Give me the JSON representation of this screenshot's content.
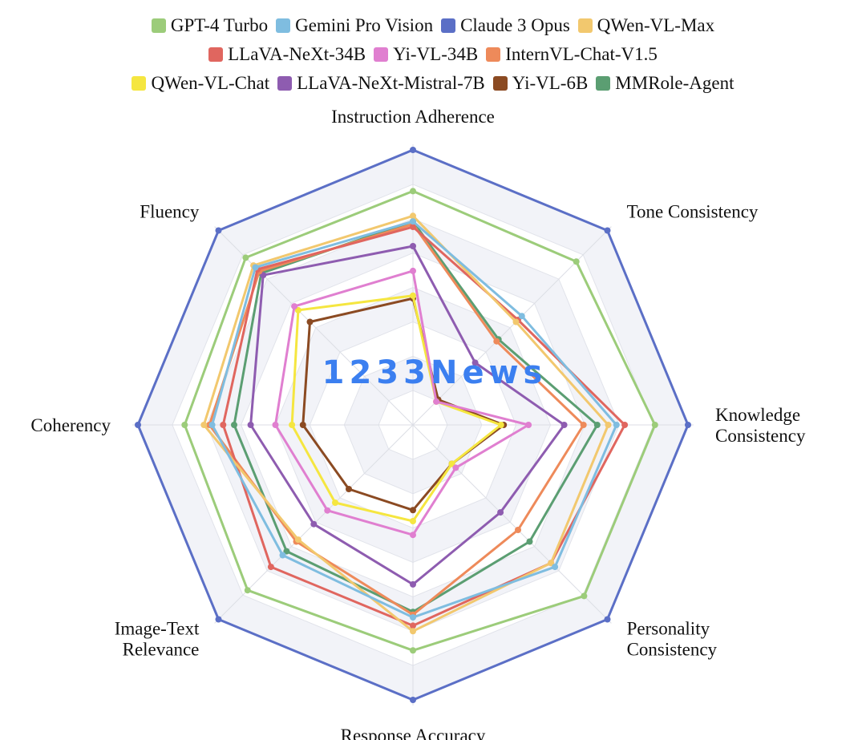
{
  "chart_data": {
    "type": "radar",
    "axes": [
      "Instruction Adherence",
      "Tone Consistency",
      "Knowledge Consistency",
      "Personality Consistency",
      "Response Accuracy",
      "Image-Text Relevance",
      "Coherency",
      "Fluency"
    ],
    "axis_label_lines": [
      [
        "Instruction Adherence"
      ],
      [
        "Tone Consistency"
      ],
      [
        "Knowledge",
        "Consistency"
      ],
      [
        "Personality",
        "Consistency"
      ],
      [
        "Response Accuracy"
      ],
      [
        "Image-Text",
        "Relevance"
      ],
      [
        "Coherency"
      ],
      [
        "Fluency"
      ]
    ],
    "range": [
      0,
      1
    ],
    "grid_levels": 8,
    "legend_position": "top",
    "legend_rows": [
      [
        "GPT-4 Turbo",
        "Gemini Pro Vision",
        "Claude 3 Opus",
        "QWen-VL-Max"
      ],
      [
        "LLaVA-NeXt-34B",
        "Yi-VL-34B",
        "InternVL-Chat-V1.5"
      ],
      [
        "QWen-VL-Chat",
        "LLaVA-NeXt-Mistral-7B",
        "Yi-VL-6B",
        "MMRole-Agent"
      ]
    ],
    "series": [
      {
        "name": "GPT-4 Turbo",
        "color": "#9ccc7a",
        "values": [
          0.85,
          0.84,
          0.88,
          0.88,
          0.82,
          0.85,
          0.83,
          0.86
        ]
      },
      {
        "name": "Gemini Pro Vision",
        "color": "#7fbde0",
        "values": [
          0.74,
          0.56,
          0.74,
          0.73,
          0.7,
          0.67,
          0.73,
          0.81
        ]
      },
      {
        "name": "Claude 3 Opus",
        "color": "#5b6fc6",
        "values": [
          1.0,
          1.0,
          1.0,
          1.0,
          1.0,
          1.0,
          1.0,
          1.0
        ]
      },
      {
        "name": "QWen-VL-Max",
        "color": "#f2c86e",
        "values": [
          0.76,
          0.53,
          0.71,
          0.71,
          0.75,
          0.59,
          0.76,
          0.82
        ]
      },
      {
        "name": "LLaVA-NeXt-34B",
        "color": "#e0665f",
        "values": [
          0.72,
          0.54,
          0.77,
          0.71,
          0.73,
          0.73,
          0.69,
          0.8
        ]
      },
      {
        "name": "Yi-VL-34B",
        "color": "#e07fd0",
        "values": [
          0.56,
          0.12,
          0.42,
          0.22,
          0.4,
          0.44,
          0.5,
          0.61
        ]
      },
      {
        "name": "InternVL-Chat-V1.5",
        "color": "#ee8a5a",
        "values": [
          0.73,
          0.43,
          0.62,
          0.54,
          0.69,
          0.6,
          0.74,
          0.79
        ]
      },
      {
        "name": "QWen-VL-Chat",
        "color": "#f5e640",
        "values": [
          0.47,
          0.12,
          0.32,
          0.2,
          0.35,
          0.4,
          0.44,
          0.59
        ]
      },
      {
        "name": "LLaVA-NeXt-Mistral-7B",
        "color": "#8e5cb0",
        "values": [
          0.65,
          0.32,
          0.55,
          0.45,
          0.58,
          0.51,
          0.59,
          0.77
        ]
      },
      {
        "name": "Yi-VL-6B",
        "color": "#8b4a22",
        "values": [
          0.46,
          0.13,
          0.33,
          0.2,
          0.31,
          0.33,
          0.4,
          0.53
        ]
      },
      {
        "name": "MMRole-Agent",
        "color": "#5b9e72",
        "values": [
          0.74,
          0.44,
          0.67,
          0.6,
          0.68,
          0.65,
          0.65,
          0.78
        ]
      }
    ]
  },
  "watermark": "1233News"
}
